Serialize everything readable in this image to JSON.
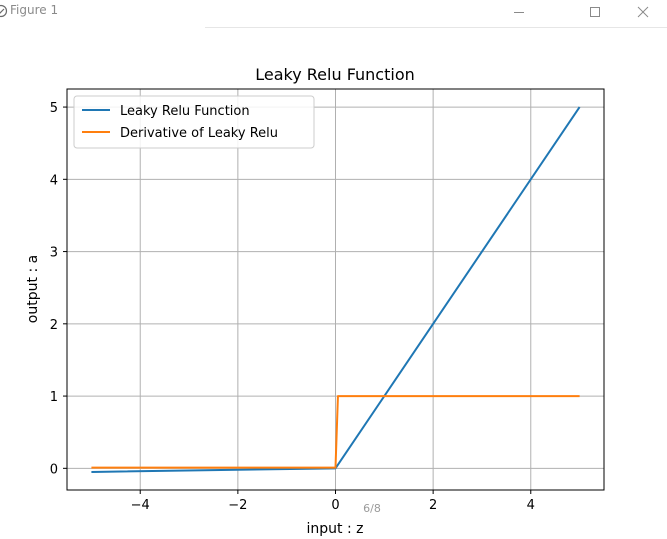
{
  "window": {
    "title": "Figure 1",
    "icon": "figure-window-icon",
    "controls": {
      "minimize": "minimize-icon",
      "maximize": "maximize-icon",
      "close": "close-icon"
    }
  },
  "overlay": {
    "page_indicator": "6/8"
  },
  "chart_data": {
    "type": "line",
    "title": "Leaky Relu Function",
    "xlabel": "input : z",
    "ylabel": "output : a",
    "xlim": [
      -5.5,
      5.5
    ],
    "ylim": [
      -0.3,
      5.25
    ],
    "xticks": [
      -4,
      -2,
      0,
      2,
      4
    ],
    "xtick_labels": [
      "−4",
      "−2",
      "0",
      "2",
      "4"
    ],
    "yticks": [
      0,
      1,
      2,
      3,
      4,
      5
    ],
    "ytick_labels": [
      "0",
      "1",
      "2",
      "3",
      "4",
      "5"
    ],
    "grid": true,
    "legend_position": "upper-left",
    "series": [
      {
        "name": "Leaky Relu Function",
        "color": "#1f77b4",
        "x": [
          -5,
          0,
          5
        ],
        "y": [
          -0.05,
          0,
          5
        ]
      },
      {
        "name": "Derivative of Leaky Relu",
        "color": "#ff7f0e",
        "x": [
          -5,
          0,
          0.05,
          5
        ],
        "y": [
          0.01,
          0.01,
          1,
          1
        ]
      }
    ]
  }
}
